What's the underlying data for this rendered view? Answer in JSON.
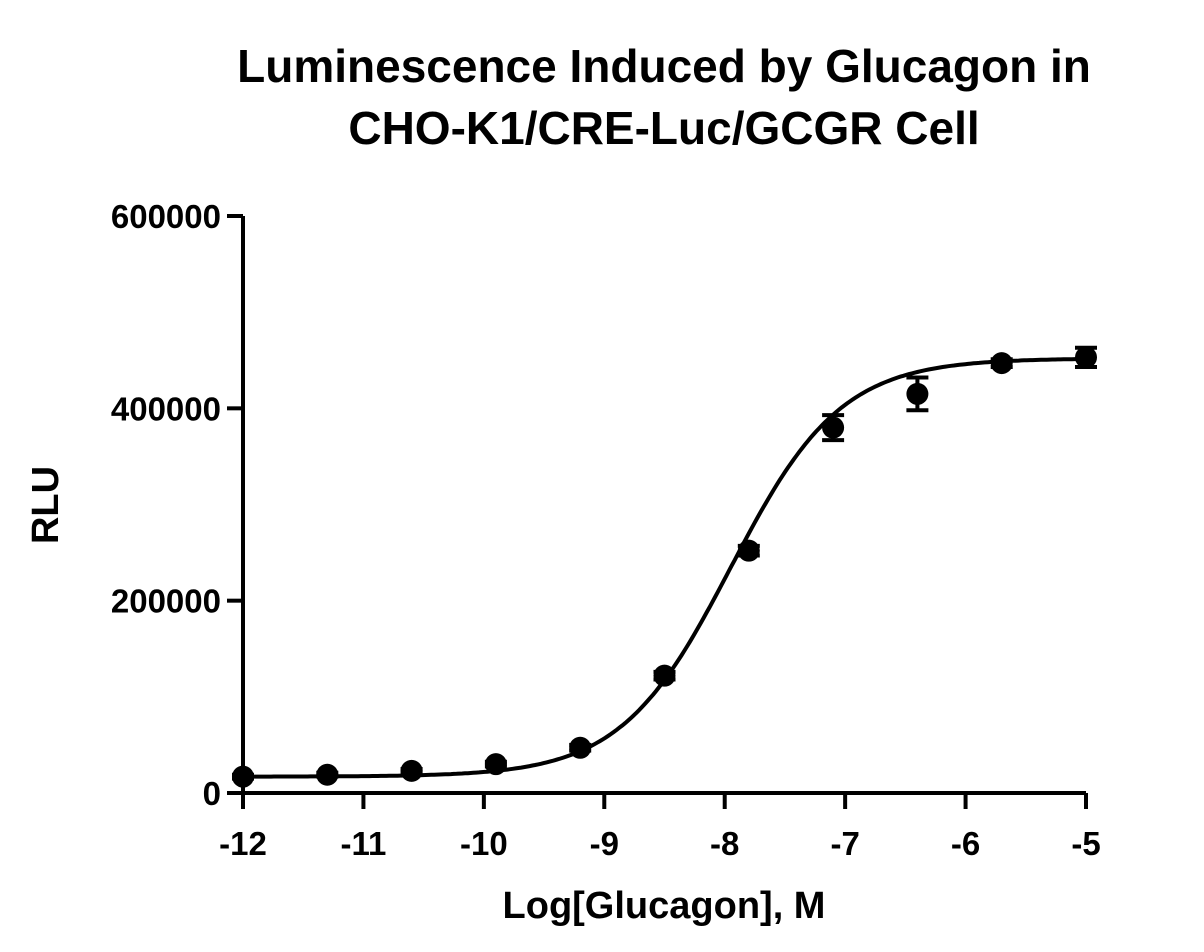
{
  "chart_data": {
    "type": "scatter",
    "title_lines": [
      "Luminescence Induced by Glucagon in",
      "CHO-K1/CRE-Luc/GCGR Cell"
    ],
    "xlabel": "Log[Glucagon], M",
    "ylabel": "RLU",
    "xlim": [
      -12,
      -5
    ],
    "ylim": [
      0,
      600000
    ],
    "x_ticks": [
      -12,
      -11,
      -10,
      -9,
      -8,
      -7,
      -6,
      -5
    ],
    "x_tick_labels": [
      "-12",
      "-11",
      "-10",
      "-9",
      "-8",
      "-7",
      "-6",
      "-5"
    ],
    "y_ticks": [
      0,
      200000,
      400000,
      600000
    ],
    "y_tick_labels": [
      "0",
      "200000",
      "400000",
      "600000"
    ],
    "grid": false,
    "legend": "none",
    "series": [
      {
        "x": [
          -12,
          -11.3,
          -10.6,
          -9.9,
          -9.2,
          -8.5,
          -7.8,
          -7.1,
          -6.4,
          -5.7,
          -5
        ],
        "y": [
          17000,
          19000,
          23000,
          30000,
          47000,
          122000,
          252000,
          380000,
          415000,
          447000,
          453000
        ],
        "error": [
          2000,
          2000,
          2000,
          2500,
          3000,
          4000,
          5000,
          13000,
          17000,
          4000,
          10000
        ]
      }
    ],
    "fit_curve": {
      "model": "4PL",
      "bottom": 17000,
      "top": 452000,
      "log_ec50": -7.95,
      "hill_slope": 0.95
    }
  }
}
